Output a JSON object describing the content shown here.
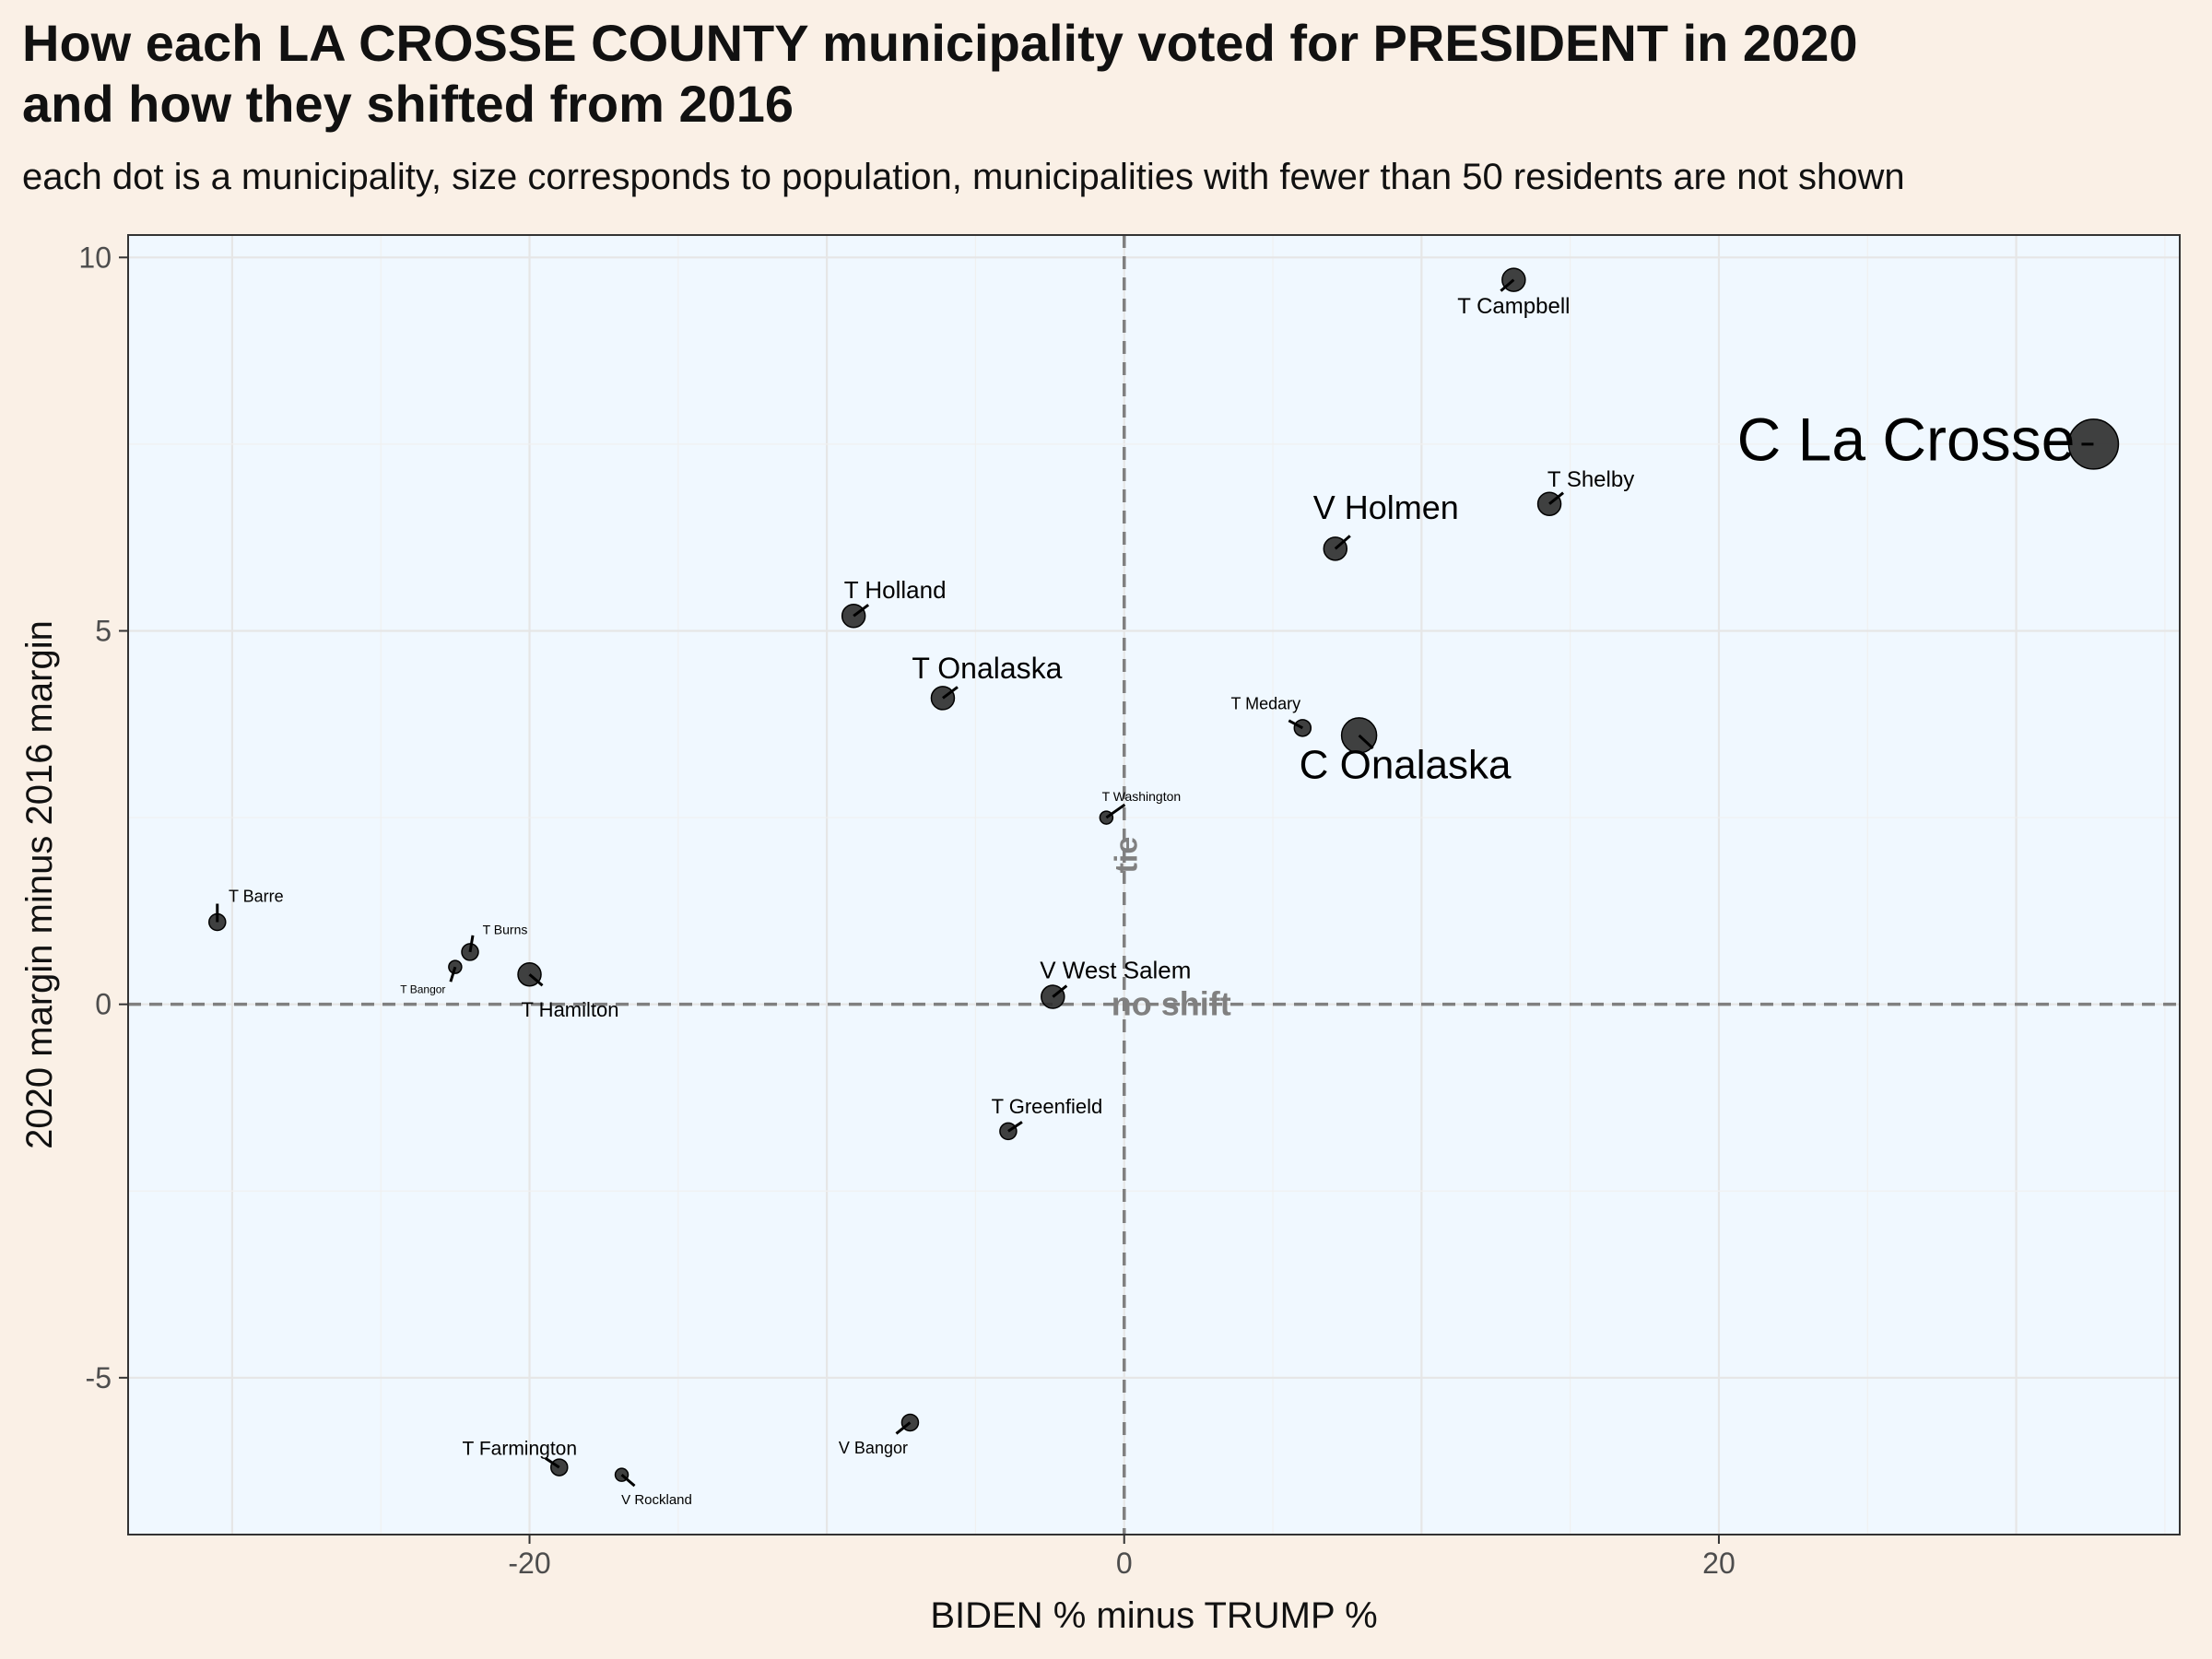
{
  "title_line1": "How each LA CROSSE COUNTY municipality voted for PRESIDENT in 2020",
  "title_line2": "and how they shifted from 2016",
  "subtitle": "each dot is a municipality, size corresponds to population, municipalities with fewer than 50 residents are not shown",
  "chart_data": {
    "type": "scatter",
    "xlabel": "BIDEN % minus TRUMP %",
    "ylabel": "2020 margin minus 2016 margin",
    "xlim": [
      -33.5,
      35.5
    ],
    "ylim": [
      -7.1,
      10.3
    ],
    "x_ticks": [
      -20,
      0,
      20
    ],
    "y_ticks": [
      -5,
      0,
      5,
      10
    ],
    "grid": true,
    "reference_lines": {
      "vertical_x": 0,
      "vertical_label": "tie",
      "horizontal_y": 0,
      "horizontal_label": "no shift"
    },
    "colors": {
      "panel": "#f0f8ff",
      "background": "#faf0e6",
      "point": "#2b2b2b",
      "reference": "#808080"
    },
    "points": [
      {
        "label": "C La Crosse",
        "x": 32.6,
        "y": 7.5,
        "size": "largest"
      },
      {
        "label": "C Onalaska",
        "x": 7.9,
        "y": 3.6,
        "size": "large"
      },
      {
        "label": "V Holmen",
        "x": 7.1,
        "y": 6.1,
        "size": "medium"
      },
      {
        "label": "T Campbell",
        "x": 13.1,
        "y": 9.7,
        "size": "medium"
      },
      {
        "label": "T Shelby",
        "x": 14.3,
        "y": 6.7,
        "size": "medium"
      },
      {
        "label": "T Medary",
        "x": 6.0,
        "y": 3.7,
        "size": "small"
      },
      {
        "label": "T Holland",
        "x": -9.1,
        "y": 5.2,
        "size": "medium"
      },
      {
        "label": "T Onalaska",
        "x": -6.1,
        "y": 4.1,
        "size": "medium"
      },
      {
        "label": "T Washington",
        "x": -0.6,
        "y": 2.5,
        "size": "tiny"
      },
      {
        "label": "V West Salem",
        "x": -2.4,
        "y": 0.1,
        "size": "medium"
      },
      {
        "label": "T Greenfield",
        "x": -3.9,
        "y": -1.7,
        "size": "small"
      },
      {
        "label": "T Barre",
        "x": -30.5,
        "y": 1.1,
        "size": "small"
      },
      {
        "label": "T Burns",
        "x": -22.0,
        "y": 0.7,
        "size": "small"
      },
      {
        "label": "T Bangor",
        "x": -22.5,
        "y": 0.5,
        "size": "tiny"
      },
      {
        "label": "T Hamilton",
        "x": -20.0,
        "y": 0.4,
        "size": "medium"
      },
      {
        "label": "T Farmington",
        "x": -19.0,
        "y": -6.2,
        "size": "small"
      },
      {
        "label": "V Rockland",
        "x": -16.9,
        "y": -6.3,
        "size": "tiny"
      },
      {
        "label": "V Bangor",
        "x": -7.2,
        "y": -5.6,
        "size": "small"
      }
    ]
  }
}
